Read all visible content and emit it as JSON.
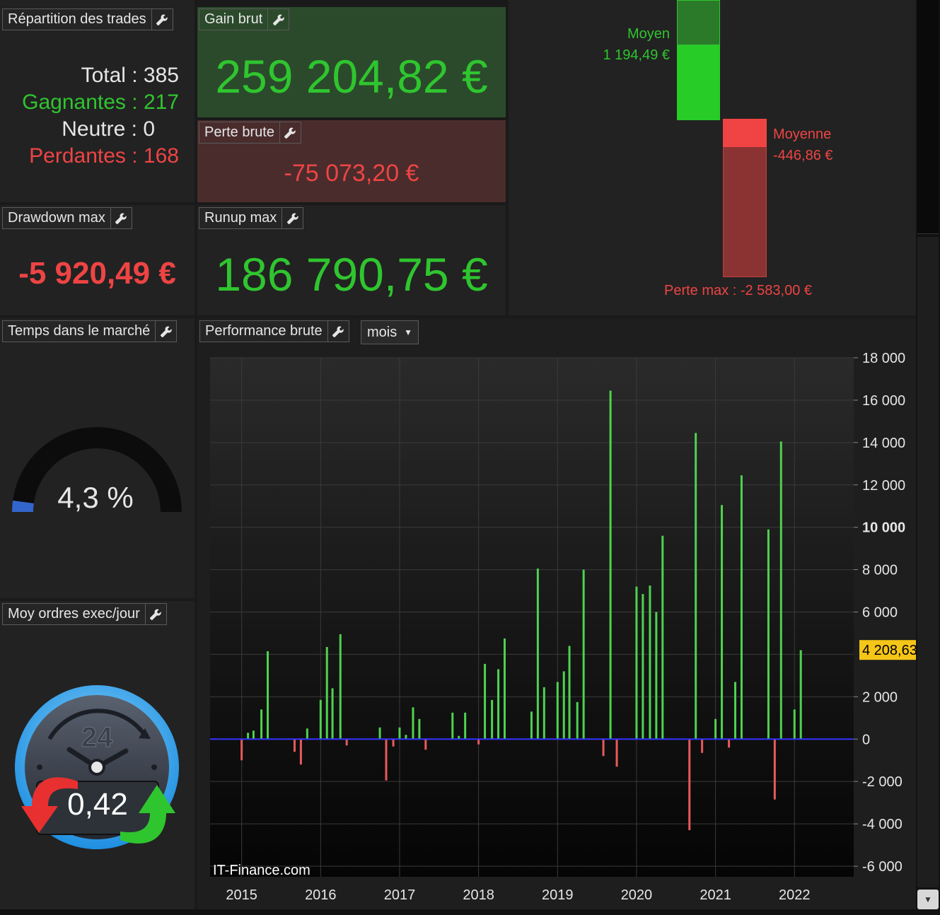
{
  "repartition": {
    "title": "Répartition des trades",
    "total": "Total : 385",
    "gagnantes": "Gagnantes : 217",
    "neutre": "Neutre : 0",
    "perdantes": "Perdantes : 168"
  },
  "gain_brut": {
    "title": "Gain brut",
    "value": "259 204,82 €"
  },
  "perte_brute": {
    "title": "Perte brute",
    "value": "-75 073,20 €"
  },
  "drawdown": {
    "title": "Drawdown max",
    "value": "-5 920,49 €"
  },
  "runup": {
    "title": "Runup max",
    "value": "186 790,75 €"
  },
  "avg_bars": {
    "moyen_label": "Moyen",
    "moyen_value": "1 194,49 €",
    "moyenne_label": "Moyenne",
    "moyenne_value": "-446,86 €",
    "perte_max": "Perte max : -2 583,00 €"
  },
  "temps_marche": {
    "title": "Temps dans le marché",
    "value": "4,3 %",
    "fraction": 0.043
  },
  "ordres": {
    "title": "Moy ordres exec/jour",
    "value": "0,42",
    "clock_label": "24"
  },
  "performance": {
    "title": "Performance brute",
    "period": "mois",
    "watermark": "IT-Finance.com"
  },
  "colors": {
    "green": "#2fc52f",
    "red": "#ee4444",
    "bar_green": "#4fd24f",
    "bar_red": "#e85a5a",
    "last_marker": "#f5c518"
  },
  "chart_data": {
    "type": "bar",
    "ylim": [
      -6500,
      18000
    ],
    "yticks": [
      18000,
      16000,
      14000,
      12000,
      10000,
      8000,
      6000,
      2000,
      0,
      -2000,
      -4000,
      -6000
    ],
    "ytick_labels": [
      "18 000",
      "16 000",
      "14 000",
      "12 000",
      "10 000",
      "8 000",
      "6 000",
      "2 000",
      "0",
      "-2 000",
      "-4 000",
      "-6 000"
    ],
    "xlim": [
      2014.6,
      2022.75
    ],
    "xticks": [
      2015,
      2016,
      2017,
      2018,
      2019,
      2020,
      2021,
      2022
    ],
    "xtick_labels": [
      "2015",
      "2016",
      "2017",
      "2018",
      "2019",
      "2020",
      "2021",
      "2022"
    ],
    "last_value_label": "4 208,63",
    "last_value": 4208.63,
    "series": [
      {
        "values": [
          [
            2015.0,
            -1000
          ],
          [
            2015.08,
            300
          ],
          [
            2015.15,
            400
          ],
          [
            2015.25,
            1400
          ],
          [
            2015.33,
            4150
          ],
          [
            2015.67,
            -600
          ],
          [
            2015.75,
            -1200
          ],
          [
            2015.83,
            500
          ],
          [
            2016.0,
            1850
          ],
          [
            2016.08,
            4350
          ],
          [
            2016.15,
            2400
          ],
          [
            2016.25,
            4950
          ],
          [
            2016.33,
            -300
          ],
          [
            2016.75,
            550
          ],
          [
            2016.83,
            -1950
          ],
          [
            2016.92,
            -350
          ],
          [
            2017.0,
            550
          ],
          [
            2017.08,
            200
          ],
          [
            2017.17,
            1500
          ],
          [
            2017.25,
            950
          ],
          [
            2017.33,
            -500
          ],
          [
            2017.67,
            1250
          ],
          [
            2017.75,
            150
          ],
          [
            2017.83,
            1250
          ],
          [
            2018.0,
            -250
          ],
          [
            2018.08,
            3550
          ],
          [
            2018.17,
            1850
          ],
          [
            2018.25,
            3300
          ],
          [
            2018.33,
            4750
          ],
          [
            2018.67,
            1300
          ],
          [
            2018.75,
            8050
          ],
          [
            2018.83,
            2450
          ],
          [
            2019.0,
            2700
          ],
          [
            2019.08,
            3200
          ],
          [
            2019.15,
            4400
          ],
          [
            2019.25,
            1750
          ],
          [
            2019.33,
            8000
          ],
          [
            2019.58,
            -800
          ],
          [
            2019.67,
            16450
          ],
          [
            2019.75,
            -1300
          ],
          [
            2020.0,
            7200
          ],
          [
            2020.08,
            6850
          ],
          [
            2020.17,
            7250
          ],
          [
            2020.25,
            6000
          ],
          [
            2020.33,
            9600
          ],
          [
            2020.67,
            -4300
          ],
          [
            2020.75,
            14450
          ],
          [
            2020.83,
            -650
          ],
          [
            2021.0,
            950
          ],
          [
            2021.08,
            11050
          ],
          [
            2021.17,
            -400
          ],
          [
            2021.25,
            2700
          ],
          [
            2021.33,
            12450
          ],
          [
            2021.67,
            9900
          ],
          [
            2021.75,
            -2850
          ],
          [
            2021.83,
            14050
          ],
          [
            2022.0,
            1400
          ],
          [
            2022.08,
            4200
          ]
        ]
      }
    ]
  }
}
